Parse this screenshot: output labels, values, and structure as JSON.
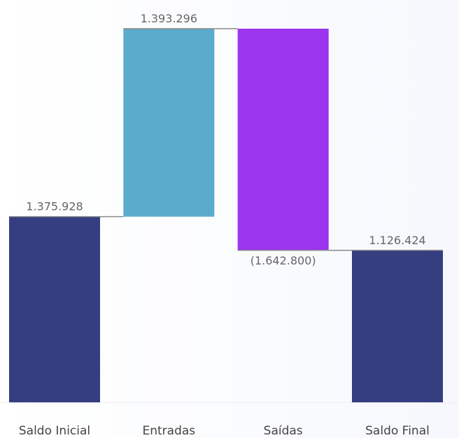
{
  "chart_data": {
    "type": "waterfall",
    "categories": [
      "Saldo Inicial",
      "Entradas",
      "Saídas",
      "Saldo Final"
    ],
    "values": [
      1375928,
      1393296,
      -1642800,
      1126424
    ],
    "kinds": [
      "total",
      "increase",
      "decrease",
      "total"
    ],
    "labels": [
      "1.375.928",
      "1.393.296",
      "(1.642.800)",
      "1.126.424"
    ],
    "ylim": [
      0,
      2769224
    ],
    "grid": false,
    "legend": "none",
    "title": "",
    "xlabel": "",
    "ylabel": ""
  },
  "colors": {
    "total": "#353e80",
    "increase": "#5babcc",
    "decrease": "#9b35ee",
    "connector": "#8a8a8a",
    "label": "#666666",
    "axis_label": "#444444",
    "baseline": "#eeeeee"
  }
}
